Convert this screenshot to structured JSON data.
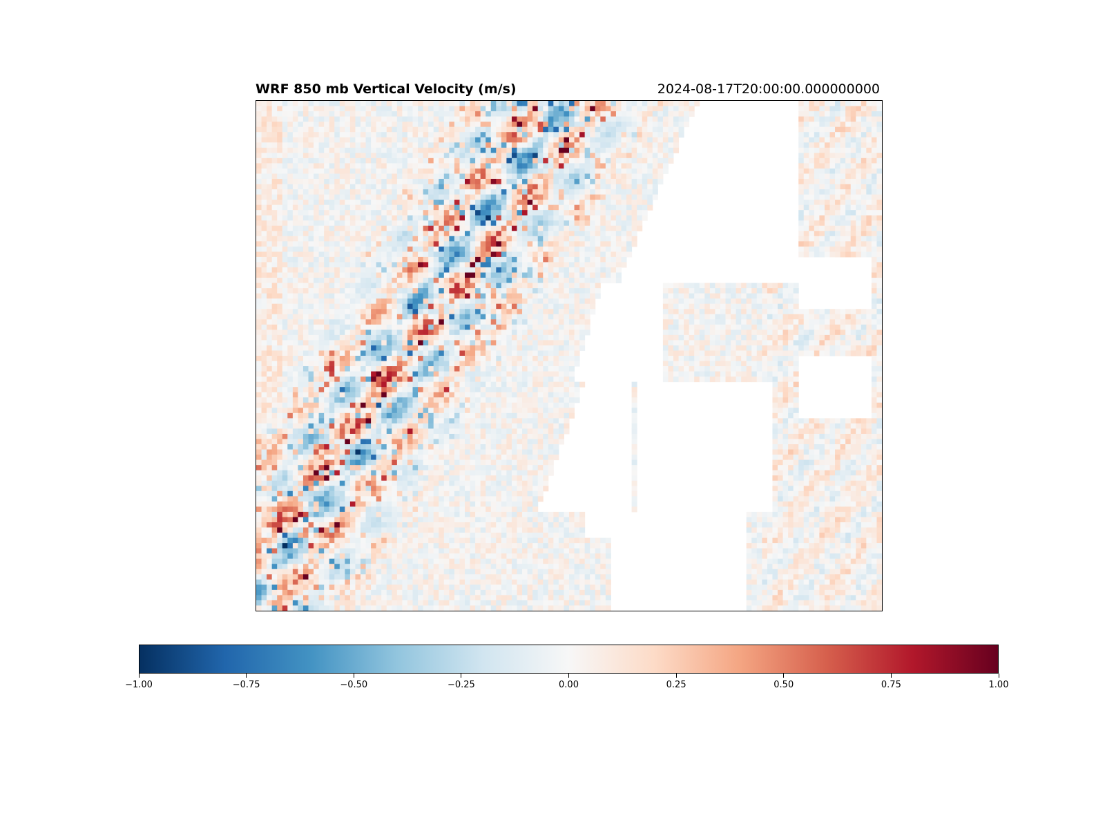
{
  "chart_data": {
    "type": "heatmap",
    "title": "WRF 850 mb Vertical Velocity (m/s)",
    "subtitle": "2024-08-17T20:00:00.000000000",
    "xlabel": "",
    "ylabel": "",
    "colormap": "RdBu_r",
    "vmin": -1.0,
    "vmax": 1.0,
    "colorbar": {
      "orientation": "horizontal",
      "ticks": [
        -1.0,
        -0.75,
        -0.5,
        -0.25,
        0.0,
        0.25,
        0.5,
        0.75,
        1.0
      ],
      "tick_labels": [
        "−1.00",
        "−0.75",
        "−0.50",
        "−0.25",
        "0.00",
        "0.25",
        "0.50",
        "0.75",
        "1.00"
      ]
    },
    "grid": false,
    "masked_regions_color": "#ffffff"
  }
}
